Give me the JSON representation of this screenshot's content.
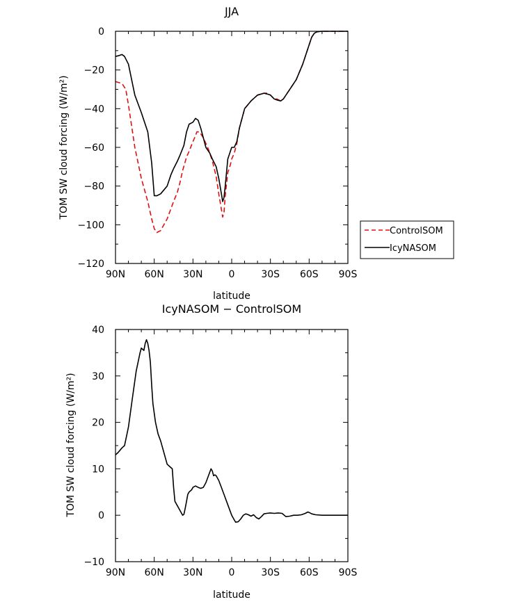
{
  "chart_data": [
    {
      "type": "line",
      "title": "JJA",
      "xlabel": "latitude",
      "ylabel": "TOM SW cloud forcing (W/m²)",
      "xlim": [
        90,
        -90
      ],
      "ylim": [
        -120,
        0
      ],
      "xticks": [
        90,
        60,
        30,
        0,
        -30,
        -60,
        -90
      ],
      "xtick_labels": [
        "90N",
        "60N",
        "30N",
        "0",
        "30S",
        "60S",
        "90S"
      ],
      "yticks": [
        0,
        -20,
        -40,
        -60,
        -80,
        -100,
        -120
      ],
      "ytick_labels": [
        "0",
        "−20",
        "−40",
        "−60",
        "−80",
        "−100",
        "−120"
      ],
      "legend_position": "right-bottom-outside",
      "series": [
        {
          "name": "ControlSOM",
          "color": "#e01010",
          "dash": "dashed",
          "x": [
            90,
            85,
            82,
            80,
            75,
            70,
            65,
            62,
            60,
            58,
            55,
            50,
            45,
            42,
            40,
            38,
            35,
            33,
            30,
            28,
            27,
            25,
            22,
            20,
            18,
            15,
            12,
            10,
            8,
            7,
            6,
            5,
            3,
            1,
            0,
            -2,
            -4,
            -6,
            -10,
            -15,
            -20,
            -25,
            -28,
            -30,
            -33,
            -35,
            -38,
            -40,
            -43,
            -46,
            -50,
            -55,
            -58,
            -60,
            -62,
            -64,
            -66,
            -68,
            -70,
            -75,
            -80,
            -85,
            -90
          ],
          "y": [
            -26,
            -27,
            -30,
            -38,
            -60,
            -76,
            -88,
            -97,
            -102,
            -104,
            -103,
            -97,
            -88,
            -83,
            -78,
            -72,
            -65,
            -62,
            -57,
            -54,
            -52,
            -52,
            -55,
            -58,
            -61,
            -67,
            -75,
            -84,
            -92,
            -96,
            -94,
            -85,
            -73,
            -69,
            -66,
            -63,
            -58,
            -50,
            -40,
            -36,
            -33,
            -32,
            -32,
            -33,
            -35,
            -35,
            -36,
            -35,
            -32,
            -29,
            -25,
            -17,
            -11,
            -7,
            -3,
            -1,
            -0.3,
            -0.1,
            0,
            0,
            0,
            0,
            0
          ]
        },
        {
          "name": "IcyNASOM",
          "color": "#000000",
          "dash": "solid",
          "x": [
            90,
            87,
            85,
            83,
            80,
            75,
            70,
            65,
            62,
            60,
            58,
            55,
            50,
            47,
            45,
            42,
            40,
            37,
            35,
            33,
            30,
            28,
            26,
            24,
            22,
            20,
            17,
            15,
            12,
            10,
            8,
            7,
            6,
            5,
            3,
            1,
            0,
            -2,
            -4,
            -6,
            -10,
            -15,
            -20,
            -25,
            -28,
            -30,
            -33,
            -35,
            -38,
            -40,
            -43,
            -46,
            -50,
            -55,
            -58,
            -60,
            -62,
            -64,
            -66,
            -68,
            -70,
            -75,
            -80,
            -85,
            -90
          ],
          "y": [
            -13,
            -12.5,
            -12,
            -13,
            -17,
            -33,
            -42,
            -52,
            -68,
            -85,
            -85,
            -84,
            -80,
            -74,
            -71,
            -67,
            -64,
            -59,
            -52,
            -48,
            -47,
            -45,
            -46,
            -50,
            -55,
            -60,
            -63,
            -66,
            -70,
            -76,
            -84,
            -88,
            -86,
            -80,
            -66,
            -62,
            -60,
            -60,
            -57,
            -50,
            -40,
            -36,
            -33,
            -32,
            -32.5,
            -33,
            -35,
            -35.5,
            -36,
            -35,
            -32,
            -29,
            -25,
            -17,
            -11,
            -7,
            -3,
            -1,
            -0.3,
            -0.1,
            0,
            0,
            0,
            0,
            0
          ]
        }
      ],
      "legend": [
        "ControlSOM",
        "IcyNASOM"
      ]
    },
    {
      "type": "line",
      "title": "IcyNASOM − ControlSOM",
      "xlabel": "latitude",
      "ylabel": "TOM SW cloud forcing (W/m²)",
      "xlim": [
        90,
        -90
      ],
      "ylim": [
        -10,
        40
      ],
      "xticks": [
        90,
        60,
        30,
        0,
        -30,
        -60,
        -90
      ],
      "xtick_labels": [
        "90N",
        "60N",
        "30N",
        "0",
        "30S",
        "60S",
        "90S"
      ],
      "yticks": [
        40,
        30,
        20,
        10,
        0,
        -10
      ],
      "ytick_labels": [
        "40",
        "30",
        "20",
        "10",
        "0",
        "−10"
      ],
      "series": [
        {
          "color": "#000000",
          "dash": "solid",
          "x": [
            90,
            88,
            85,
            83,
            80,
            77,
            74,
            71,
            70,
            68,
            67,
            66,
            65,
            64,
            63,
            62,
            61,
            59,
            57,
            55,
            52,
            50,
            48,
            46,
            45,
            44,
            42,
            40,
            38,
            37,
            36,
            35,
            34,
            33,
            31,
            30,
            28,
            26,
            24,
            22,
            20,
            18,
            16,
            15,
            14,
            13,
            12,
            10,
            8,
            6,
            4,
            2,
            0,
            -2,
            -3,
            -5,
            -7,
            -9,
            -11,
            -13,
            -15,
            -17,
            -19,
            -21,
            -23,
            -25,
            -27,
            -30,
            -33,
            -36,
            -39,
            -42,
            -45,
            -48,
            -51,
            -54,
            -57,
            -59,
            -60,
            -62,
            -65,
            -70,
            -75,
            -80,
            -85,
            -90
          ],
          "y": [
            13,
            13.5,
            14.5,
            15,
            19,
            25,
            31,
            35,
            36,
            35.5,
            37,
            37.8,
            37,
            35.5,
            33,
            28,
            24,
            20,
            17.5,
            16,
            13,
            11,
            10.5,
            10,
            6,
            3,
            2,
            1,
            0,
            0.2,
            1.5,
            3,
            4.5,
            5,
            5.5,
            6,
            6.3,
            6,
            5.8,
            6,
            7,
            8.5,
            10,
            9.5,
            8.5,
            8.7,
            8.5,
            7.5,
            6,
            4.5,
            3,
            1.5,
            0,
            -1,
            -1.5,
            -1.4,
            -0.8,
            0,
            0.3,
            0.1,
            -0.2,
            0.1,
            -0.5,
            -0.8,
            -0.3,
            0.3,
            0.4,
            0.5,
            0.4,
            0.5,
            0.4,
            -0.3,
            -0.2,
            0,
            0,
            0.1,
            0.4,
            0.7,
            0.6,
            0.3,
            0.1,
            0,
            0,
            0,
            0,
            0
          ]
        }
      ]
    }
  ]
}
